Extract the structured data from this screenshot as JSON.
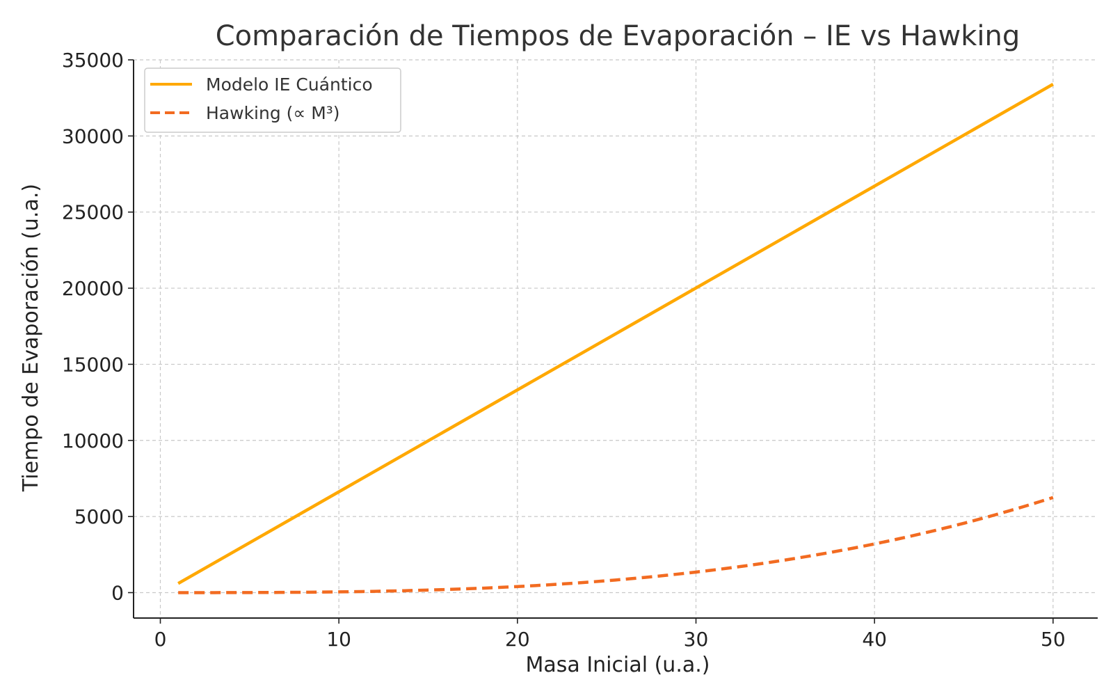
{
  "chart_data": {
    "type": "line",
    "title": "Comparación de Tiempos de Evaporación – IE vs Hawking",
    "xlabel": "Masa Inicial (u.a.)",
    "ylabel": "Tiempo de Evaporación (u.a.)",
    "xlim": [
      -1.5,
      52.5
    ],
    "ylim": [
      -1670,
      35000
    ],
    "xticks": [
      0,
      10,
      20,
      30,
      40,
      50
    ],
    "yticks": [
      0,
      5000,
      10000,
      15000,
      20000,
      25000,
      30000,
      35000
    ],
    "grid": true,
    "legend_position": "top-left",
    "series": [
      {
        "name": "Modelo IE Cuántico",
        "style": "solid",
        "color": "#FFA800",
        "law": "linear",
        "x": [
          1,
          50
        ],
        "y": [
          600,
          33400
        ]
      },
      {
        "name": "Hawking (∝ M³)",
        "style": "dashed",
        "color": "#F26B21",
        "law": "cubic",
        "x": [
          1,
          5,
          10,
          15,
          20,
          25,
          30,
          35,
          40,
          45,
          50
        ],
        "y": [
          0,
          6,
          50,
          170,
          400,
          780,
          1350,
          2140,
          3200,
          4550,
          6250
        ]
      }
    ]
  }
}
